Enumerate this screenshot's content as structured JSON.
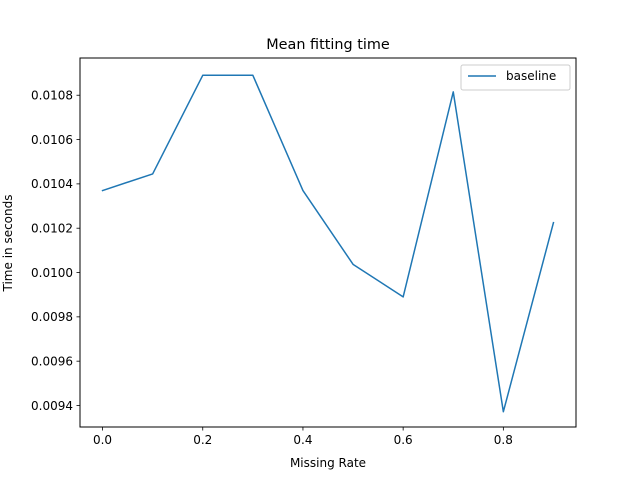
{
  "chart_data": {
    "type": "line",
    "title": "Mean fitting time",
    "xlabel": "Missing Rate",
    "ylabel": "Time in seconds",
    "xlim": [
      -0.045,
      0.945
    ],
    "ylim": [
      0.009303,
      0.010968
    ],
    "xticks": [
      0.0,
      0.2,
      0.4,
      0.6,
      0.8
    ],
    "xtick_labels": [
      "0.0",
      "0.2",
      "0.4",
      "0.6",
      "0.8"
    ],
    "yticks": [
      0.0094,
      0.0096,
      0.0098,
      0.01,
      0.0102,
      0.0104,
      0.0106,
      0.0108
    ],
    "ytick_labels": [
      "0.0094",
      "0.0096",
      "0.0098",
      "0.0100",
      "0.0102",
      "0.0104",
      "0.0106",
      "0.0108"
    ],
    "grid": false,
    "legend_position": "top-right",
    "series": [
      {
        "name": "baseline",
        "color": "#1f77b4",
        "x": [
          0.0,
          0.1,
          0.2,
          0.3,
          0.4,
          0.5,
          0.6,
          0.7,
          0.8,
          0.9
        ],
        "y": [
          0.01037,
          0.010445,
          0.01089,
          0.01089,
          0.01037,
          0.010037,
          0.00989,
          0.010815,
          0.009372,
          0.010225
        ]
      }
    ]
  }
}
